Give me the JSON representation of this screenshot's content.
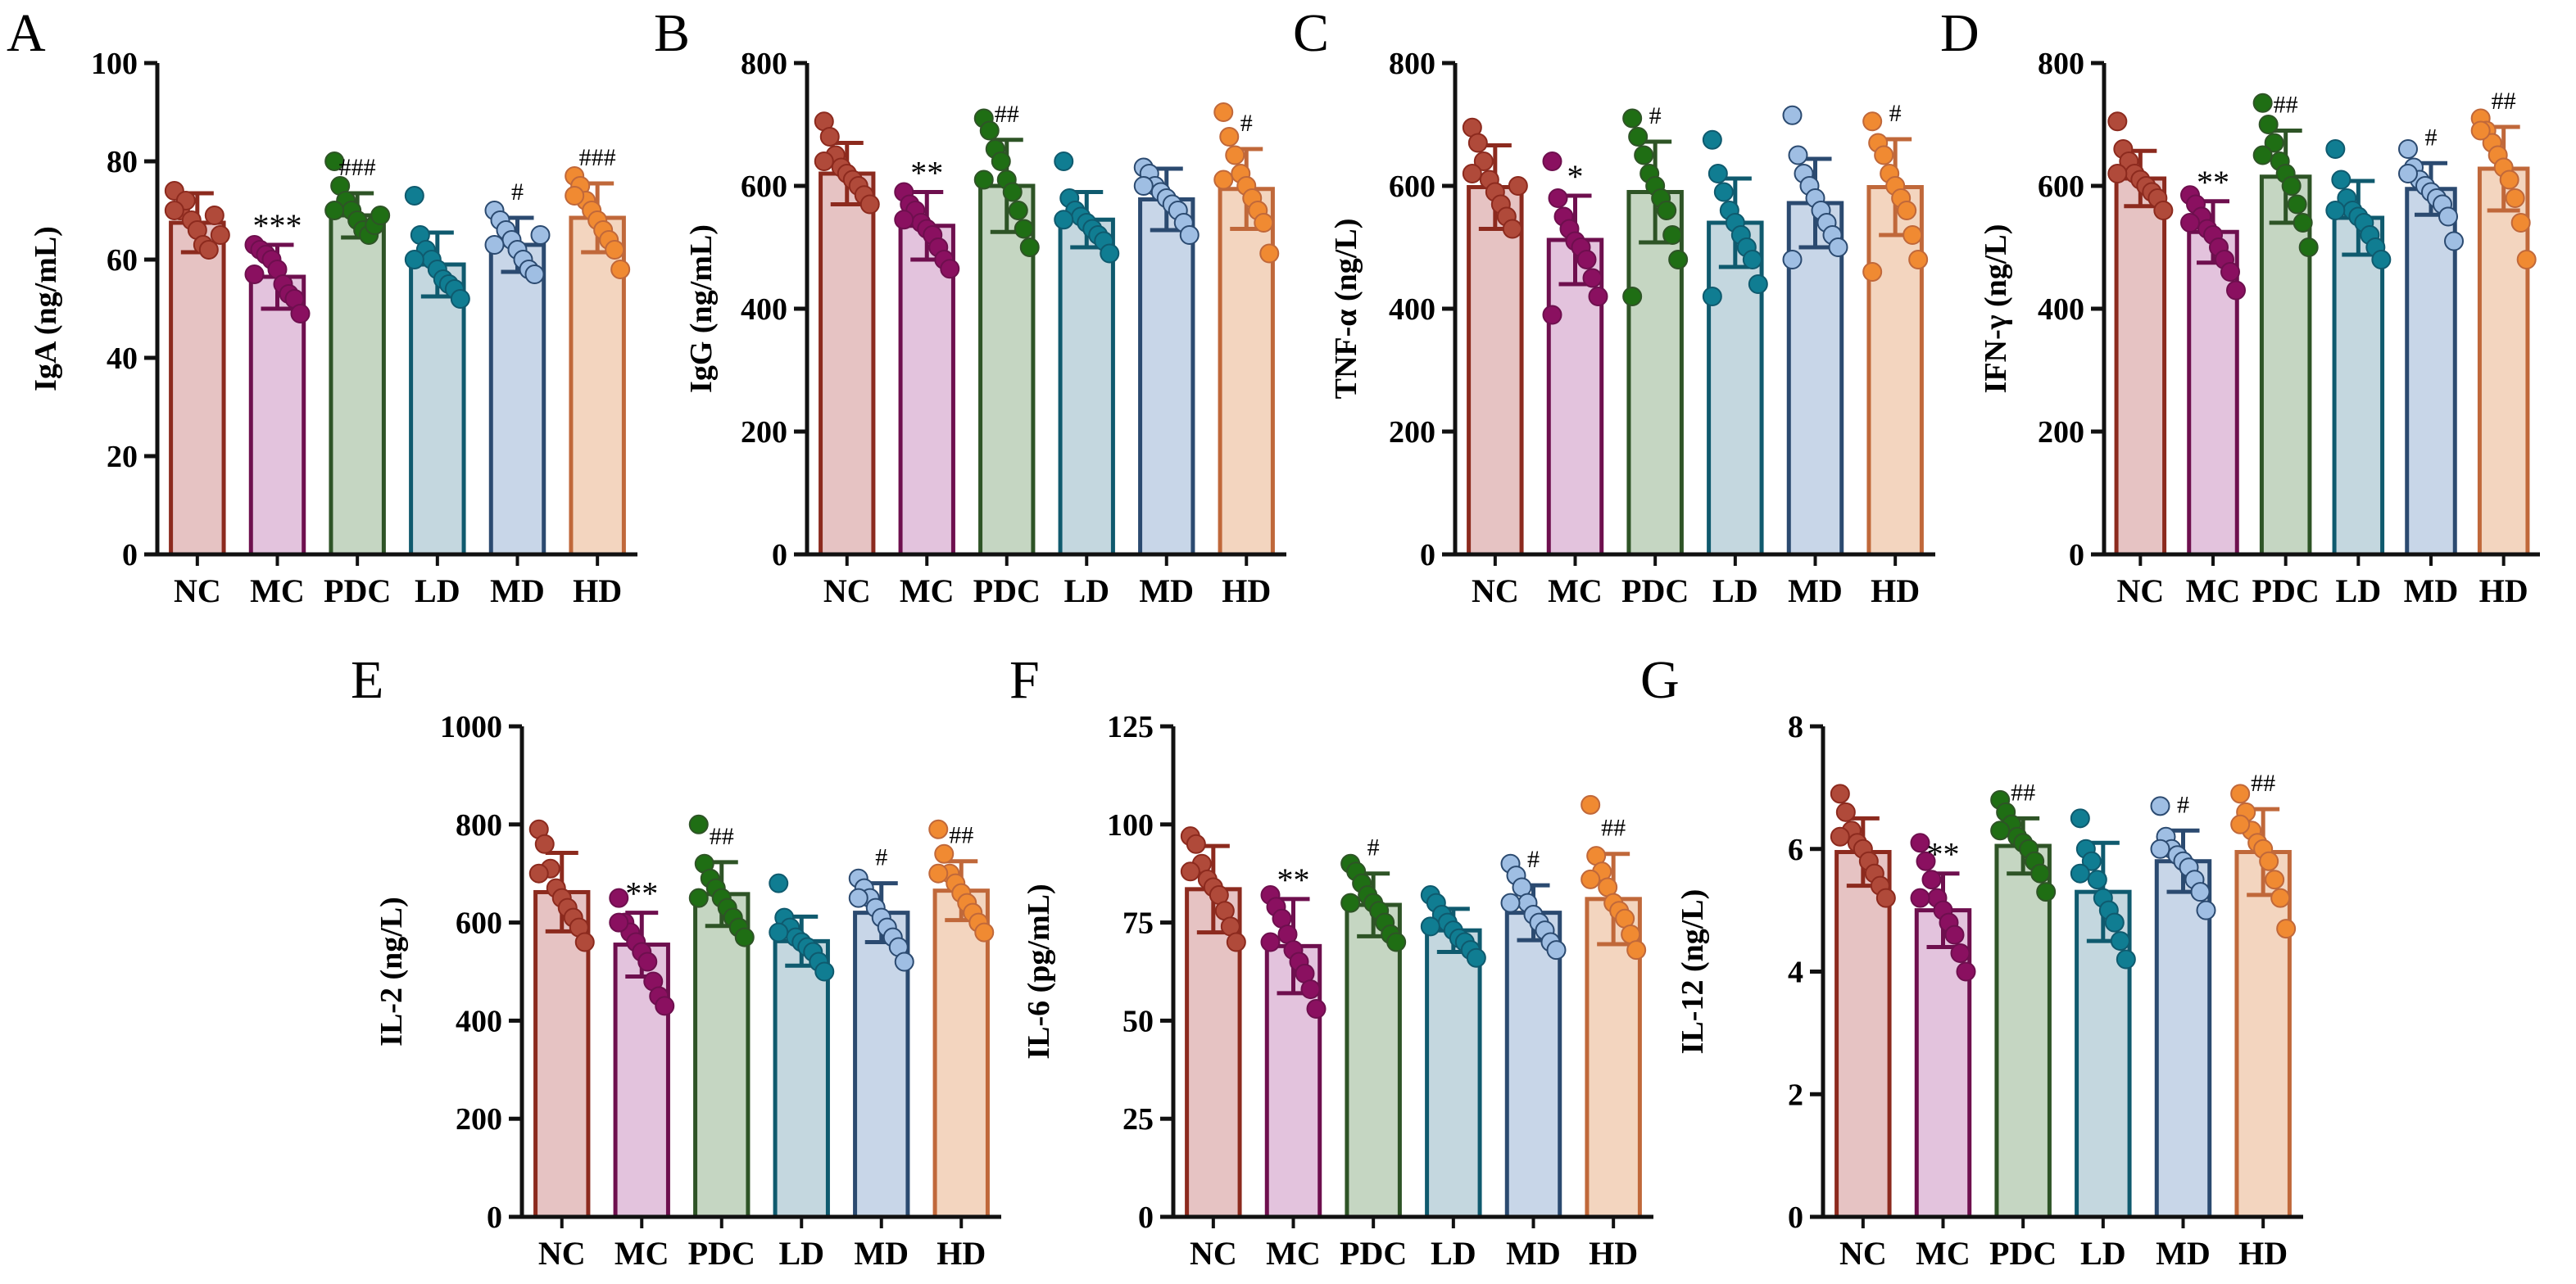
{
  "figure": {
    "background": "#ffffff",
    "axis_color": "#111111"
  },
  "groups": [
    "NC",
    "MC",
    "PDC",
    "LD",
    "MD",
    "HD"
  ],
  "group_colors": {
    "NC": {
      "fill": "#e6c3c3",
      "stroke": "#8c2a1e",
      "dot": "#b04a3a"
    },
    "MC": {
      "fill": "#e3c3dd",
      "stroke": "#6e0f4e",
      "dot": "#8a1060"
    },
    "PDC": {
      "fill": "#c5d6c2",
      "stroke": "#2e5426",
      "dot": "#1f6e14"
    },
    "LD": {
      "fill": "#c4d7df",
      "stroke": "#0f5a6e",
      "dot": "#107d92"
    },
    "MD": {
      "fill": "#c8d6e8",
      "stroke": "#2b4a70",
      "dot": "#9fbee3"
    },
    "HD": {
      "fill": "#f3d5bf",
      "stroke": "#c0683a",
      "dot": "#f08a32"
    }
  },
  "chart_data": [
    {
      "panel": "A",
      "type": "bar",
      "ylabel": "IgA (ng/mL)",
      "ylim": [
        0,
        100
      ],
      "yticks": [
        0,
        20,
        40,
        60,
        80,
        100
      ],
      "categories": [
        "NC",
        "MC",
        "PDC",
        "LD",
        "MD",
        "HD"
      ],
      "means": [
        67.5,
        56.5,
        69.0,
        59.0,
        63.0,
        68.5
      ],
      "sd": [
        6.0,
        6.5,
        4.5,
        6.5,
        5.5,
        7.0
      ],
      "points": [
        [
          74,
          70,
          72,
          68,
          66,
          63,
          62,
          69,
          65,
          70
        ],
        [
          63,
          62,
          61,
          60,
          58,
          55,
          53,
          52,
          49,
          57
        ],
        [
          80,
          75,
          72,
          70,
          68,
          66,
          65,
          67,
          69,
          70
        ],
        [
          73,
          65,
          62,
          60,
          58,
          56,
          55,
          54,
          52,
          60
        ],
        [
          70,
          68,
          66,
          64,
          62,
          60,
          58,
          57,
          65,
          63
        ],
        [
          77,
          75,
          72,
          70,
          68,
          66,
          64,
          62,
          58,
          73
        ]
      ],
      "annotations": [
        "",
        "***",
        "###",
        "",
        "#",
        "###"
      ]
    },
    {
      "panel": "B",
      "type": "bar",
      "ylabel": "IgG (ng/mL)",
      "ylim": [
        0,
        800
      ],
      "yticks": [
        0,
        200,
        400,
        600,
        800
      ],
      "categories": [
        "NC",
        "MC",
        "PDC",
        "LD",
        "MD",
        "HD"
      ],
      "means": [
        620,
        535,
        600,
        545,
        578,
        595
      ],
      "sd": [
        50,
        55,
        75,
        45,
        50,
        65
      ],
      "points": [
        [
          705,
          680,
          650,
          630,
          620,
          610,
          600,
          585,
          570,
          640
        ],
        [
          590,
          570,
          560,
          540,
          530,
          520,
          500,
          480,
          465,
          545
        ],
        [
          710,
          690,
          660,
          640,
          610,
          590,
          560,
          530,
          500,
          610
        ],
        [
          640,
          580,
          560,
          550,
          540,
          530,
          520,
          510,
          490,
          545
        ],
        [
          630,
          620,
          600,
          590,
          580,
          570,
          560,
          540,
          520,
          600
        ],
        [
          720,
          680,
          650,
          620,
          600,
          580,
          560,
          540,
          490,
          610
        ]
      ],
      "annotations": [
        "",
        "**",
        "##",
        "",
        "",
        "#"
      ]
    },
    {
      "panel": "C",
      "type": "bar",
      "ylabel": "TNF-α (ng/L)",
      "ylim": [
        0,
        800
      ],
      "yticks": [
        0,
        200,
        400,
        600,
        800
      ],
      "categories": [
        "NC",
        "MC",
        "PDC",
        "LD",
        "MD",
        "HD"
      ],
      "means": [
        598,
        512,
        590,
        540,
        572,
        598
      ],
      "sd": [
        68,
        72,
        82,
        72,
        72,
        78
      ],
      "points": [
        [
          695,
          670,
          640,
          610,
          590,
          570,
          550,
          530,
          600,
          620
        ],
        [
          640,
          580,
          550,
          530,
          510,
          500,
          480,
          450,
          420,
          390
        ],
        [
          710,
          680,
          650,
          620,
          600,
          580,
          560,
          520,
          480,
          420
        ],
        [
          675,
          620,
          590,
          560,
          540,
          520,
          500,
          480,
          440,
          420
        ],
        [
          715,
          650,
          620,
          600,
          580,
          560,
          540,
          520,
          500,
          480
        ],
        [
          705,
          670,
          650,
          620,
          600,
          580,
          560,
          520,
          480,
          460
        ]
      ],
      "annotations": [
        "",
        "*",
        "#",
        "",
        "",
        "#"
      ]
    },
    {
      "panel": "D",
      "type": "bar",
      "ylabel": "IFN-γ (ng/L)",
      "ylim": [
        0,
        800
      ],
      "yticks": [
        0,
        200,
        400,
        600,
        800
      ],
      "categories": [
        "NC",
        "MC",
        "PDC",
        "LD",
        "MD",
        "HD"
      ],
      "means": [
        612,
        525,
        615,
        548,
        595,
        628
      ],
      "sd": [
        45,
        50,
        75,
        60,
        42,
        68
      ],
      "points": [
        [
          705,
          660,
          640,
          620,
          610,
          600,
          590,
          580,
          560,
          620
        ],
        [
          585,
          570,
          550,
          530,
          520,
          500,
          480,
          460,
          430,
          540
        ],
        [
          735,
          700,
          670,
          640,
          620,
          600,
          570,
          540,
          500,
          650
        ],
        [
          660,
          610,
          580,
          560,
          550,
          540,
          520,
          500,
          480,
          560
        ],
        [
          660,
          630,
          610,
          600,
          590,
          580,
          570,
          550,
          510,
          620
        ],
        [
          710,
          690,
          670,
          650,
          630,
          610,
          580,
          540,
          480,
          690
        ]
      ],
      "annotations": [
        "",
        "**",
        "##",
        "",
        "#",
        "##"
      ]
    },
    {
      "panel": "E",
      "type": "bar",
      "ylabel": "IL-2 (ng/L)",
      "ylim": [
        0,
        1000
      ],
      "yticks": [
        0,
        200,
        400,
        600,
        800,
        1000
      ],
      "categories": [
        "NC",
        "MC",
        "PDC",
        "LD",
        "MD",
        "HD"
      ],
      "means": [
        662,
        555,
        658,
        562,
        620,
        665
      ],
      "sd": [
        80,
        65,
        65,
        50,
        60,
        60
      ],
      "points": [
        [
          790,
          760,
          710,
          670,
          650,
          630,
          610,
          590,
          560,
          700
        ],
        [
          650,
          600,
          580,
          560,
          540,
          520,
          480,
          450,
          430,
          600
        ],
        [
          800,
          720,
          690,
          670,
          650,
          630,
          610,
          590,
          570,
          650
        ],
        [
          680,
          610,
          590,
          570,
          560,
          550,
          540,
          520,
          500,
          580
        ],
        [
          690,
          670,
          650,
          630,
          610,
          590,
          570,
          550,
          520,
          650
        ],
        [
          790,
          740,
          700,
          680,
          660,
          640,
          620,
          600,
          580,
          700
        ]
      ],
      "annotations": [
        "",
        "**",
        "##",
        "",
        "#",
        "##"
      ]
    },
    {
      "panel": "F",
      "type": "bar",
      "ylabel": "IL-6 (pg/mL)",
      "ylim": [
        0,
        125
      ],
      "yticks": [
        0,
        25,
        50,
        75,
        100,
        125
      ],
      "categories": [
        "NC",
        "MC",
        "PDC",
        "LD",
        "MD",
        "HD"
      ],
      "means": [
        83.5,
        69.0,
        79.5,
        73.0,
        77.5,
        81.0
      ],
      "sd": [
        11.0,
        12.0,
        8.0,
        5.5,
        7.0,
        11.5
      ],
      "points": [
        [
          97,
          95,
          90,
          86,
          84,
          82,
          78,
          74,
          70,
          88
        ],
        [
          82,
          79,
          76,
          72,
          68,
          65,
          62,
          58,
          53,
          70
        ],
        [
          90,
          88,
          85,
          82,
          80,
          78,
          75,
          72,
          70,
          80
        ],
        [
          82,
          80,
          77,
          75,
          73,
          71,
          70,
          68,
          66,
          74
        ],
        [
          90,
          87,
          84,
          80,
          77,
          75,
          73,
          70,
          68,
          80
        ],
        [
          105,
          92,
          88,
          84,
          80,
          78,
          76,
          72,
          68,
          86
        ]
      ],
      "annotations": [
        "",
        "**",
        "#",
        "",
        "#",
        "##"
      ]
    },
    {
      "panel": "G",
      "type": "bar",
      "ylabel": "IL-12 (ng/L)",
      "ylim": [
        0,
        8
      ],
      "yticks": [
        0,
        2,
        4,
        6,
        8
      ],
      "categories": [
        "NC",
        "MC",
        "PDC",
        "LD",
        "MD",
        "HD"
      ],
      "means": [
        5.95,
        5.0,
        6.05,
        5.3,
        5.8,
        5.95
      ],
      "sd": [
        0.55,
        0.6,
        0.45,
        0.8,
        0.5,
        0.7
      ],
      "points": [
        [
          6.9,
          6.6,
          6.3,
          6.1,
          6.0,
          5.8,
          5.6,
          5.4,
          5.2,
          6.2
        ],
        [
          6.1,
          5.8,
          5.5,
          5.2,
          5.0,
          4.8,
          4.6,
          4.3,
          4.0,
          5.2
        ],
        [
          6.8,
          6.6,
          6.4,
          6.2,
          6.1,
          6.0,
          5.8,
          5.6,
          5.3,
          6.3
        ],
        [
          6.5,
          6.0,
          5.8,
          5.5,
          5.2,
          5.0,
          4.8,
          4.5,
          4.2,
          5.6
        ],
        [
          6.7,
          6.2,
          6.0,
          5.9,
          5.8,
          5.7,
          5.5,
          5.3,
          5.0,
          6.0
        ],
        [
          6.9,
          6.6,
          6.3,
          6.1,
          6.0,
          5.8,
          5.5,
          5.2,
          4.7,
          6.4
        ]
      ],
      "annotations": [
        "",
        "**",
        "##",
        "",
        "#",
        "##"
      ]
    }
  ]
}
